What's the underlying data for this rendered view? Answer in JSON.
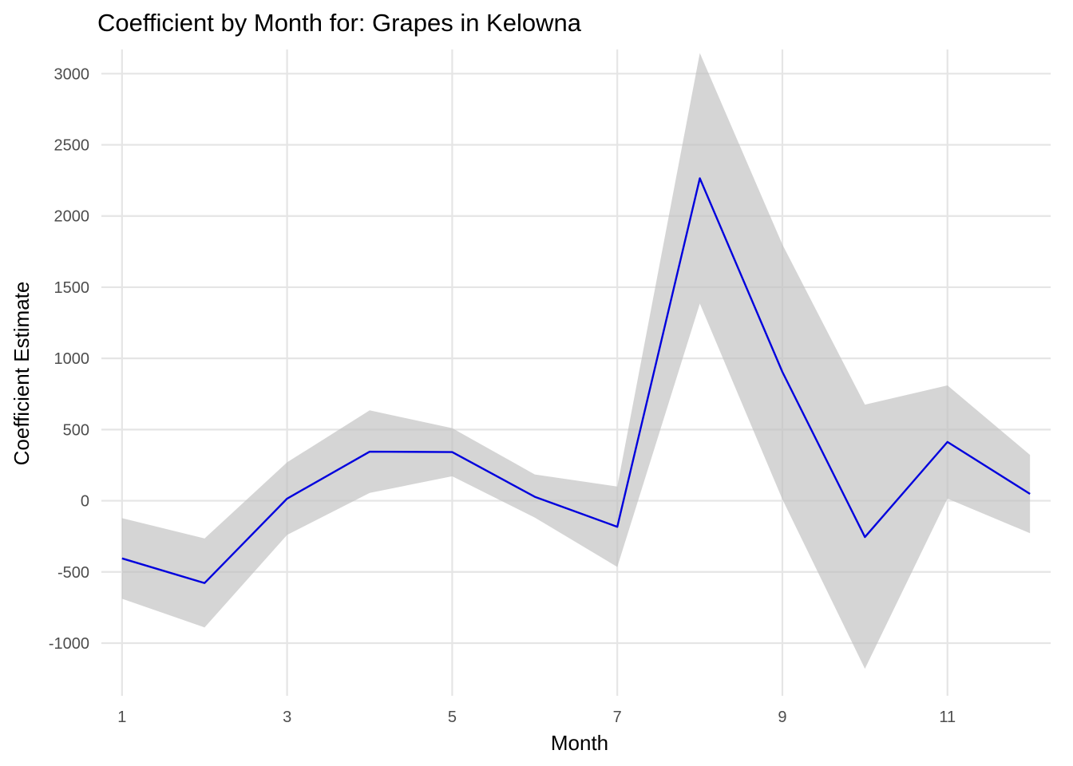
{
  "chart_data": {
    "type": "line",
    "title": "Coefficient by Month for: Grapes in Kelowna",
    "xlabel": "Month",
    "ylabel": "Coefficient Estimate",
    "xlim": [
      0.75,
      12.25
    ],
    "ylim": [
      -1370,
      3170
    ],
    "x_ticks": [
      1,
      3,
      5,
      7,
      9,
      11
    ],
    "x_tick_labels": [
      "1",
      "3",
      "5",
      "7",
      "9",
      "11"
    ],
    "y_ticks": [
      -1000,
      -500,
      0,
      500,
      1000,
      1500,
      2000,
      2500,
      3000
    ],
    "y_tick_labels": [
      "-1000",
      "-500",
      "0",
      "500",
      "1000",
      "1500",
      "2000",
      "2500",
      "3000"
    ],
    "grid": true,
    "legend": "none",
    "x": [
      1,
      2,
      3,
      4,
      5,
      6,
      7,
      8,
      9,
      10,
      11,
      12
    ],
    "series": [
      {
        "values": [
          -405,
          -578,
          15,
          345,
          342,
          28,
          -183,
          2265,
          905,
          -255,
          413,
          48
        ],
        "color": "#0000dd"
      }
    ],
    "ribbon": {
      "lower": [
        -688,
        -890,
        -240,
        55,
        172,
        -118,
        -465,
        1385,
        10,
        -1180,
        15,
        -228
      ],
      "upper": [
        -122,
        -265,
        270,
        635,
        510,
        185,
        100,
        3145,
        1800,
        675,
        810,
        322
      ],
      "color": "#bebebe",
      "opacity": 0.65
    }
  }
}
